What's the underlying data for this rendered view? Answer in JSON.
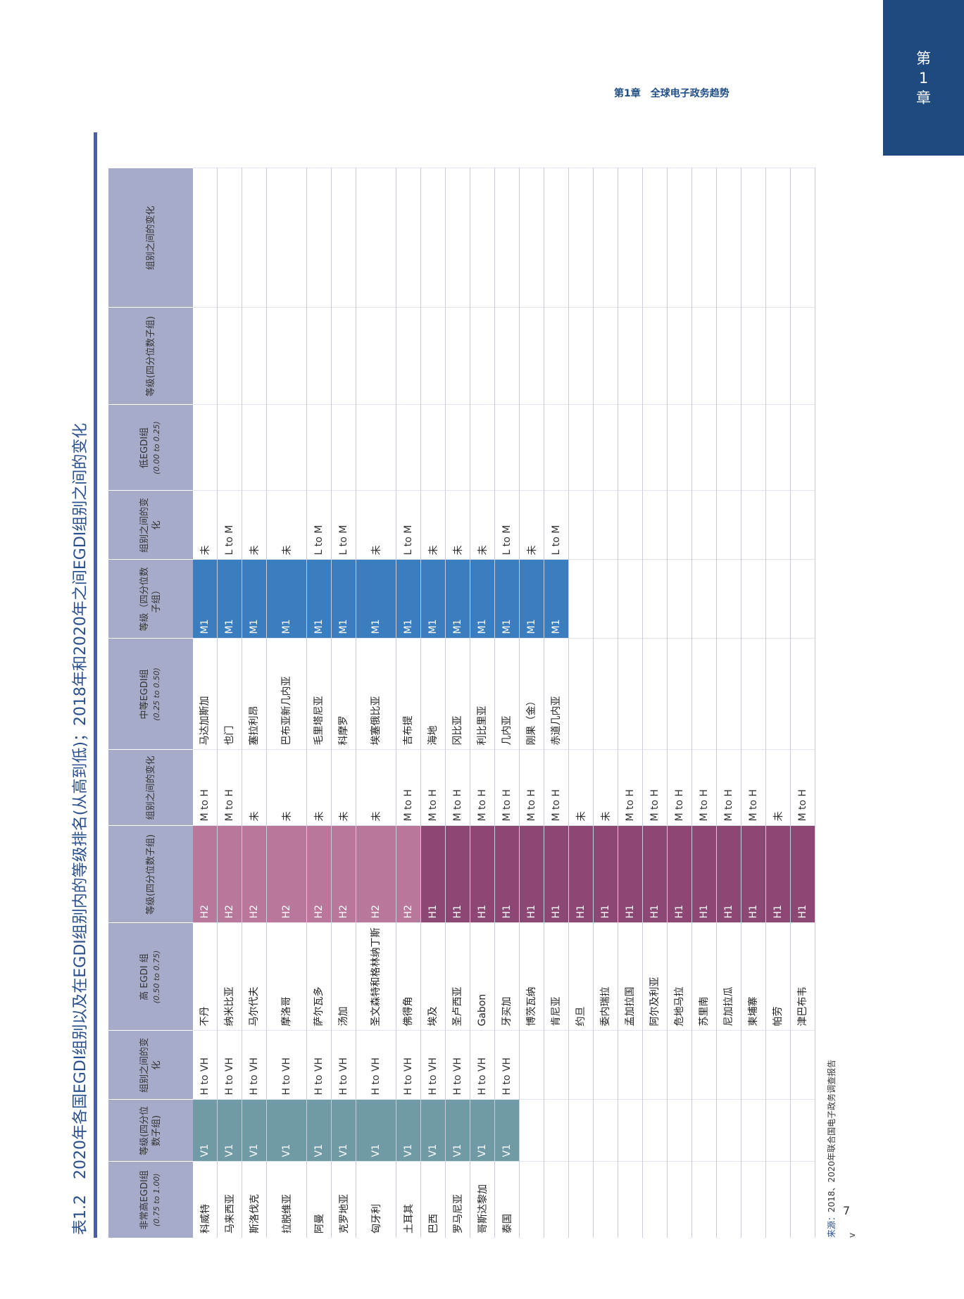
{
  "chapter_tab": {
    "line1": "第",
    "line2": "1",
    "line3": "章"
  },
  "running_head": "第1章　全球电子政务趋势",
  "page_number": "7",
  "table": {
    "label": "表1.2",
    "title": "2020年各国EGDI组别以及在EGDI组别内的等级排名(从高到低)；2018年和2020年之间EGDI组别之间的变化",
    "headers": {
      "vh_group": "非常高EGDI组",
      "vh_range": "(0.75 to 1.00)",
      "vh_level": "等级(四分位数子组)",
      "vh_change": "组别之间的变化",
      "h_group": "高 EGDI 组",
      "h_range": "(0.50 to 0.75)",
      "h_level": "等级(四分位数子组)",
      "h_change": "组别之间的变化",
      "m_group": "中等EGDI组",
      "m_range": "(0.25 to 0.50)",
      "m_level": "等级（四分位数子组）",
      "m_change": "组别之间的变化",
      "l_group": "低EGDI组",
      "l_range": "(0.00 to 0.25)",
      "l_level": "等级(四分位数子组)",
      "l_change": "组别之间的变化"
    },
    "rows": [
      {
        "vh_country": "科威特",
        "vh_level": "V1",
        "vh_change": "H to VH",
        "h_country": "不丹",
        "h_level": "H2",
        "h_change": "M to H",
        "m_country": "马达加斯加",
        "m_level": "M1",
        "m_change": "未"
      },
      {
        "vh_country": "马来西亚",
        "vh_level": "V1",
        "vh_change": "H to VH",
        "h_country": "纳米比亚",
        "h_level": "H2",
        "h_change": "M to H",
        "m_country": "也门",
        "m_level": "M1",
        "m_change": "L to M"
      },
      {
        "vh_country": "斯洛伐克",
        "vh_level": "V1",
        "vh_change": "H to VH",
        "h_country": "马尔代夫",
        "h_level": "H2",
        "h_change": "未",
        "m_country": "塞拉利昂",
        "m_level": "M1",
        "m_change": "未"
      },
      {
        "vh_country": "拉脱维亚",
        "vh_level": "V1",
        "vh_change": "H to VH",
        "h_country": "摩洛哥",
        "h_level": "H2",
        "h_change": "未",
        "m_country": "巴布亚新几内亚",
        "m_level": "M1",
        "m_change": "未"
      },
      {
        "vh_country": "阿曼",
        "vh_level": "V1",
        "vh_change": "H to VH",
        "h_country": "萨尔瓦多",
        "h_level": "H2",
        "h_change": "未",
        "m_country": "毛里塔尼亚",
        "m_level": "M1",
        "m_change": "L to M"
      },
      {
        "vh_country": "克罗地亚",
        "vh_level": "V1",
        "vh_change": "H to VH",
        "h_country": "汤加",
        "h_level": "H2",
        "h_change": "未",
        "m_country": "科摩罗",
        "m_level": "M1",
        "m_change": "L to M"
      },
      {
        "vh_country": "匈牙利",
        "vh_level": "V1",
        "vh_change": "H to VH",
        "h_country": "圣文森特和格林纳丁斯",
        "h_level": "H2",
        "h_change": "未",
        "m_country": "埃塞俄比亚",
        "m_level": "M1",
        "m_change": "未"
      },
      {
        "vh_country": "土耳其",
        "vh_level": "V1",
        "vh_change": "H to VH",
        "h_country": "佛得角",
        "h_level": "H2",
        "h_change": "M to H",
        "m_country": "吉布提",
        "m_level": "M1",
        "m_change": "L to M"
      },
      {
        "vh_country": "巴西",
        "vh_level": "V1",
        "vh_change": "H to VH",
        "h_country": "埃及",
        "h_level": "H1",
        "h_change": "M to H",
        "m_country": "海地",
        "m_level": "M1",
        "m_change": "未"
      },
      {
        "vh_country": "罗马尼亚",
        "vh_level": "V1",
        "vh_change": "H to VH",
        "h_country": "圣卢西亚",
        "h_level": "H1",
        "h_change": "M to H",
        "m_country": "冈比亚",
        "m_level": "M1",
        "m_change": "未"
      },
      {
        "vh_country": "哥斯达黎加",
        "vh_level": "V1",
        "vh_change": "H to VH",
        "h_country": "Gabon",
        "h_level": "H1",
        "h_change": "M to H",
        "m_country": "利比里亚",
        "m_level": "M1",
        "m_change": "未"
      },
      {
        "vh_country": "泰国",
        "vh_level": "V1",
        "vh_change": "H to VH",
        "h_country": "牙买加",
        "h_level": "H1",
        "h_change": "M to H",
        "m_country": "几内亚",
        "m_level": "M1",
        "m_change": "L to M"
      },
      {
        "h_country": "博茨瓦纳",
        "h_level": "H1",
        "h_change": "M to H",
        "m_country": "刚果（金）",
        "m_level": "M1",
        "m_change": "未"
      },
      {
        "h_country": "肯尼亚",
        "h_level": "H1",
        "h_change": "M to H",
        "m_country": "赤道几内亚",
        "m_level": "M1",
        "m_change": "L to M"
      },
      {
        "h_country": "约旦",
        "h_level": "H1",
        "h_change": "未"
      },
      {
        "h_country": "委内瑞拉",
        "h_level": "H1",
        "h_change": "未"
      },
      {
        "h_country": "孟加拉国",
        "h_level": "H1",
        "h_change": "M to H"
      },
      {
        "h_country": "阿尔及利亚",
        "h_level": "H1",
        "h_change": "M to H"
      },
      {
        "h_country": "危地马拉",
        "h_level": "H1",
        "h_change": "M to H"
      },
      {
        "h_country": "苏里南",
        "h_level": "H1",
        "h_change": "M to H"
      },
      {
        "h_country": "尼加拉瓜",
        "h_level": "H1",
        "h_change": "M to H"
      },
      {
        "h_country": "柬埔寨",
        "h_level": "H1",
        "h_change": "M to H"
      },
      {
        "h_country": "帕劳",
        "h_level": "H1",
        "h_change": "未"
      },
      {
        "h_country": "津巴布韦",
        "h_level": "H1",
        "h_change": "M to H"
      }
    ],
    "source_label": "来源：",
    "source_text": "2018、2020年联合国电子政务调查报告",
    "footnote_mark": "v"
  },
  "colors": {
    "v1": "#6f9aa6",
    "h2": "#b9779c",
    "h1": "#8c4775",
    "m1": "#3a7ec0",
    "header": "#a7abca",
    "tab": "#1e4a7f"
  }
}
